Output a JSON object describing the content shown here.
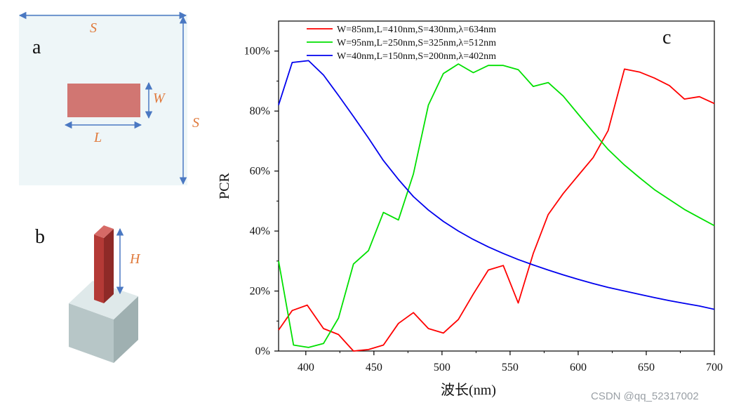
{
  "panels": {
    "a": {
      "label": "a",
      "dim_s_top": "S",
      "dim_s_right": "S",
      "dim_w": "W",
      "dim_l": "L"
    },
    "b": {
      "label": "b",
      "dim_h": "H"
    },
    "c": {
      "label": "c"
    }
  },
  "watermark": "CSDN @qq_52317002",
  "chart_data": {
    "type": "line",
    "xlabel": "波长(nm)",
    "ylabel": "PCR",
    "xlim": [
      380,
      700
    ],
    "ylim": [
      0,
      1.1
    ],
    "x_ticks": [
      400,
      450,
      500,
      550,
      600,
      650,
      700
    ],
    "x_tick_labels": [
      "400",
      "450",
      "500",
      "550",
      "600",
      "650",
      "700"
    ],
    "y_ticks": [
      0,
      0.2,
      0.4,
      0.6,
      0.8,
      1.0
    ],
    "y_tick_labels": [
      "0%",
      "20%",
      "40%",
      "60%",
      "80%",
      "100%"
    ],
    "grid": false,
    "legend_position": "top-left",
    "series": [
      {
        "name": "W=85nm,L=410nm,S=430nm,λ=634nm",
        "color": "#ff0000",
        "x": [
          380,
          390,
          401,
          413,
          424,
          435,
          446,
          457,
          468,
          479,
          490,
          501,
          512,
          523,
          534,
          545,
          556,
          567,
          578,
          589,
          600,
          611,
          622,
          634,
          645,
          656,
          667,
          678,
          689,
          700
        ],
        "y": [
          0.07,
          0.135,
          0.153,
          0.075,
          0.055,
          0.0,
          0.005,
          0.02,
          0.092,
          0.128,
          0.075,
          0.06,
          0.105,
          0.19,
          0.27,
          0.285,
          0.16,
          0.325,
          0.455,
          0.525,
          0.585,
          0.645,
          0.735,
          0.94,
          0.93,
          0.91,
          0.885,
          0.84,
          0.848,
          0.825
        ]
      },
      {
        "name": "W=95nm,L=250nm,S=325nm,λ=512nm",
        "color": "#00e000",
        "x": [
          380,
          391,
          402,
          413,
          424,
          435,
          446,
          457,
          468,
          479,
          490,
          501,
          512,
          523,
          534,
          545,
          556,
          567,
          578,
          589,
          600,
          611,
          622,
          634,
          645,
          656,
          667,
          678,
          689,
          700
        ],
        "y": [
          0.3,
          0.02,
          0.012,
          0.025,
          0.11,
          0.29,
          0.335,
          0.462,
          0.437,
          0.59,
          0.82,
          0.925,
          0.957,
          0.928,
          0.952,
          0.952,
          0.938,
          0.882,
          0.895,
          0.85,
          0.79,
          0.73,
          0.672,
          0.62,
          0.578,
          0.538,
          0.505,
          0.472,
          0.445,
          0.418
        ]
      },
      {
        "name": "W=40nm,L=150nm,S=200nm,λ=402nm",
        "color": "#0000ee",
        "x": [
          380,
          390,
          402,
          413,
          424,
          435,
          446,
          457,
          468,
          479,
          490,
          501,
          512,
          523,
          534,
          545,
          556,
          567,
          578,
          589,
          600,
          611,
          622,
          634,
          645,
          656,
          667,
          678,
          689,
          700
        ],
        "y": [
          0.82,
          0.962,
          0.968,
          0.92,
          0.852,
          0.782,
          0.71,
          0.635,
          0.572,
          0.515,
          0.47,
          0.432,
          0.4,
          0.372,
          0.347,
          0.325,
          0.305,
          0.287,
          0.27,
          0.254,
          0.239,
          0.225,
          0.212,
          0.2,
          0.189,
          0.178,
          0.168,
          0.159,
          0.15,
          0.139
        ]
      }
    ]
  }
}
